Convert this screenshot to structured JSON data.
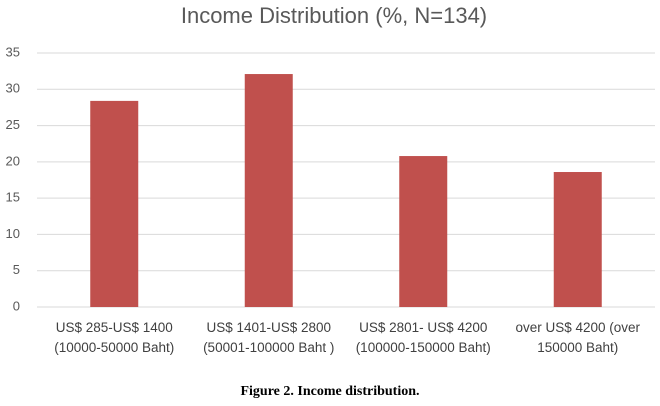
{
  "chart_data": {
    "type": "bar",
    "title": "Income Distribution (%, N=134)",
    "categories": [
      "US$ 285-US$ 1400 (10000-50000 Baht)",
      "US$ 1401-US$ 2800 (50001-100000 Baht )",
      "US$ 2801- US$ 4200 (100000-150000 Baht)",
      "over US$ 4200 (over 150000 Baht)"
    ],
    "values": [
      28.4,
      32.1,
      20.8,
      18.6
    ],
    "color": "#c0504d",
    "ylim": [
      0,
      35
    ],
    "yticks": [
      0,
      5,
      10,
      15,
      20,
      25,
      30,
      35
    ],
    "grid": true,
    "caption": "Figure 2. Income distribution."
  }
}
